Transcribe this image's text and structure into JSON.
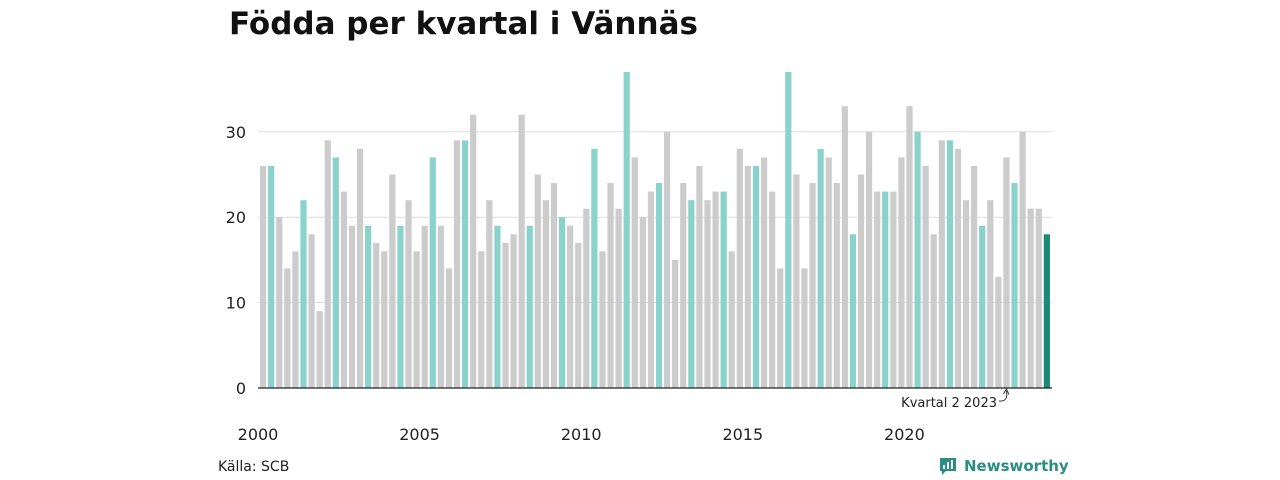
{
  "title": "Födda per kvartal i Vännäs",
  "source": "Källa: SCB",
  "brand": "Newsworthy",
  "colors": {
    "gray": "#cccccc",
    "q2": "#8ad3cc",
    "latest": "#1b8a7b",
    "grid": "#dddddd",
    "axis": "#222222"
  },
  "chart_data": {
    "type": "bar",
    "start": {
      "year": 2000,
      "quarter": 1
    },
    "values": [
      26,
      26,
      20,
      14,
      16,
      22,
      18,
      9,
      29,
      27,
      23,
      19,
      28,
      19,
      17,
      16,
      25,
      19,
      22,
      16,
      19,
      27,
      19,
      14,
      29,
      29,
      32,
      16,
      22,
      19,
      17,
      18,
      32,
      19,
      25,
      22,
      24,
      20,
      19,
      17,
      21,
      28,
      16,
      24,
      21,
      37,
      27,
      20,
      23,
      24,
      30,
      15,
      24,
      22,
      26,
      22,
      23,
      23,
      16,
      28,
      26,
      26,
      27,
      23,
      14,
      37,
      25,
      14,
      24,
      28,
      27,
      24,
      33,
      18,
      25,
      30,
      23,
      23,
      23,
      27,
      33,
      30,
      26,
      18,
      29,
      29,
      28,
      22,
      26,
      19,
      22,
      13,
      27,
      24,
      30,
      21,
      21,
      18
    ],
    "highlight": "Kvartal 2",
    "ylim": [
      0,
      37
    ],
    "yticks": [
      0,
      10,
      20,
      30
    ],
    "xticks": [
      "2000",
      "2005",
      "2010",
      "2015",
      "2020"
    ],
    "annotation": "Kvartal 2 2023",
    "grid": true
  }
}
